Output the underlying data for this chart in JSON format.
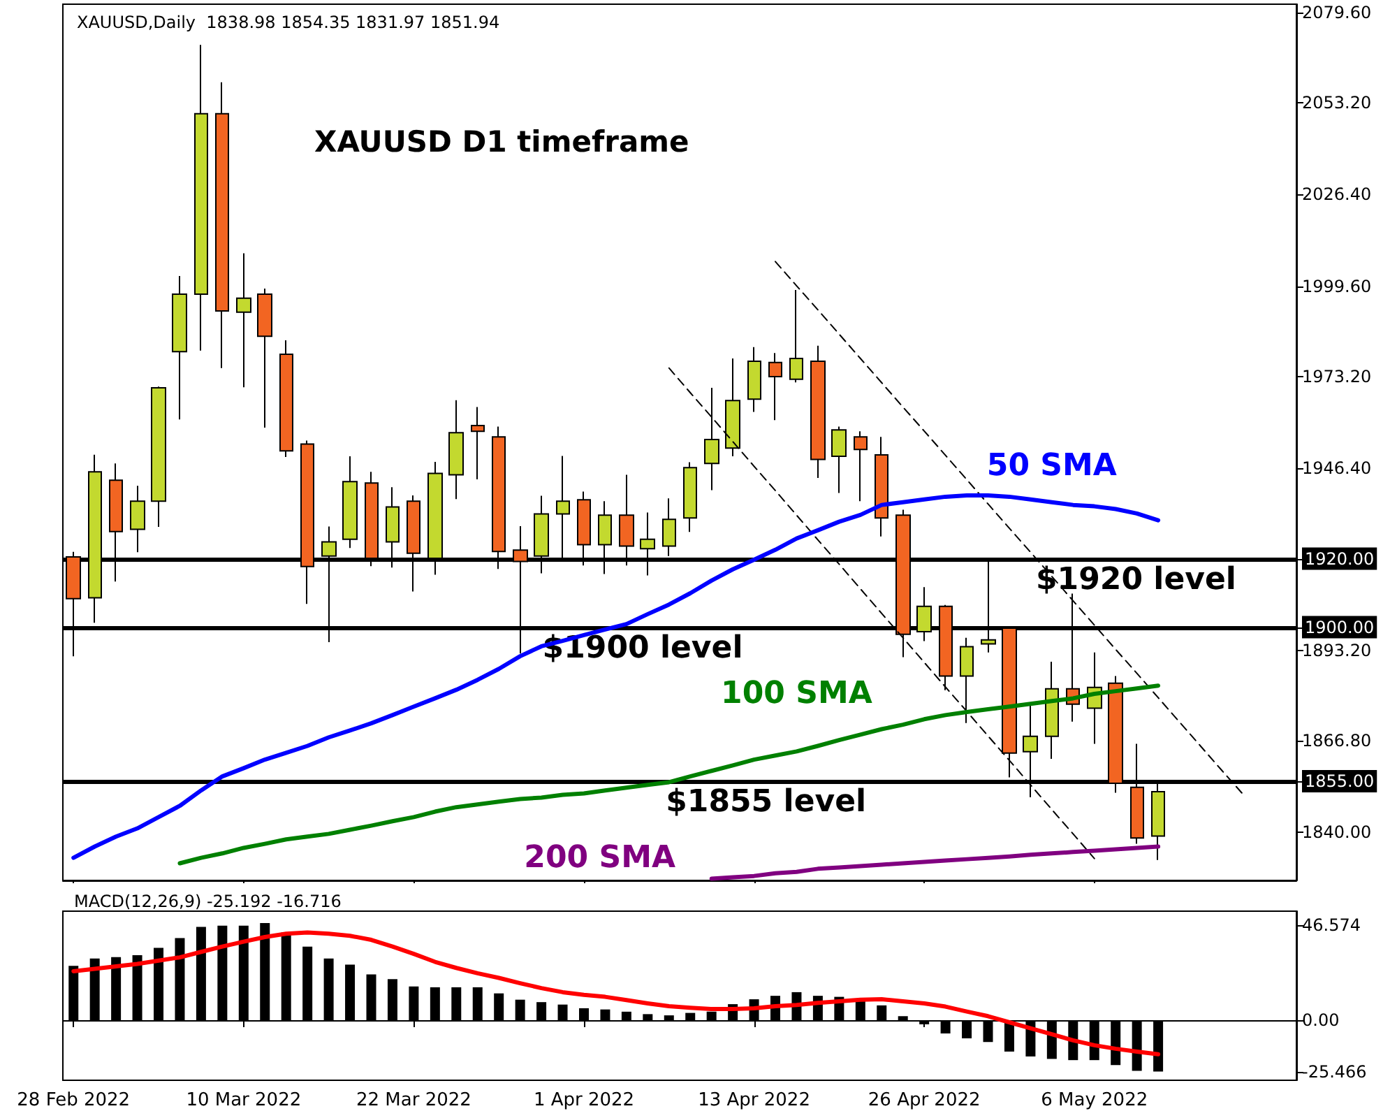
{
  "chart_data": [
    {
      "type": "candlestick",
      "title": "XAUUSD D1 timeframe",
      "annotations": [
        "XAUUSD,Daily  1838.98 1854.35 1831.97 1851.94"
      ],
      "categories": [
        "28 Feb 2022",
        null,
        null,
        null,
        null,
        null,
        null,
        null,
        "10 Mar 2022",
        null,
        null,
        null,
        null,
        null,
        null,
        null,
        "22 Mar 2022",
        null,
        null,
        null,
        null,
        null,
        null,
        null,
        "1 Apr 2022",
        null,
        null,
        null,
        null,
        null,
        null,
        null,
        "13 Apr 2022",
        null,
        null,
        null,
        null,
        null,
        null,
        null,
        "26 Apr 2022",
        null,
        null,
        null,
        null,
        null,
        null,
        null,
        "6 May 2022",
        null,
        null,
        null,
        null,
        null,
        null,
        null,
        null,
        null
      ],
      "ohlc": [
        [
          1920.5,
          1922.0,
          1891.5,
          1908.3
        ],
        [
          1908.6,
          1950.4,
          1901.3,
          1945.4
        ],
        [
          1942.9,
          1947.8,
          1913.3,
          1927.9
        ],
        [
          1928.6,
          1941.3,
          1921.9,
          1936.8
        ],
        [
          1936.8,
          1970.3,
          1929.3,
          1969.9
        ],
        [
          1980.5,
          2002.6,
          1960.7,
          1997.3
        ],
        [
          1997.3,
          2070.1,
          1980.8,
          2050.0
        ],
        [
          2050.0,
          2059.2,
          1975.7,
          1992.4
        ],
        [
          1992.0,
          2009.2,
          1970.1,
          1996.1
        ],
        [
          1997.3,
          1998.9,
          1958.3,
          1985.0
        ],
        [
          1979.7,
          1983.8,
          1949.7,
          1951.5
        ],
        [
          1953.5,
          1954.5,
          1906.8,
          1917.7
        ],
        [
          1920.8,
          1929.4,
          1895.6,
          1924.9
        ],
        [
          1925.7,
          1949.9,
          1923.1,
          1942.5
        ],
        [
          1942.1,
          1945.4,
          1917.8,
          1920.1
        ],
        [
          1924.9,
          1940.9,
          1917.4,
          1935.1
        ],
        [
          1936.8,
          1938.5,
          1910.4,
          1921.6
        ],
        [
          1920.1,
          1948.3,
          1915.3,
          1944.9
        ],
        [
          1944.5,
          1966.3,
          1937.4,
          1956.8
        ],
        [
          1958.9,
          1964.3,
          1943.2,
          1957.2
        ],
        [
          1955.6,
          1958.6,
          1917.0,
          1922.1
        ],
        [
          1922.5,
          1929.5,
          1892.3,
          1919.2
        ],
        [
          1920.8,
          1938.4,
          1915.7,
          1933.1
        ],
        [
          1933.1,
          1950.0,
          1919.2,
          1936.8
        ],
        [
          1937.2,
          1939.6,
          1918.0,
          1924.1
        ],
        [
          1924.1,
          1936.8,
          1915.5,
          1932.7
        ],
        [
          1932.7,
          1944.5,
          1918.0,
          1923.7
        ],
        [
          1922.9,
          1933.5,
          1915.1,
          1925.7
        ],
        [
          1923.7,
          1937.6,
          1920.8,
          1931.5
        ],
        [
          1931.9,
          1948.2,
          1927.8,
          1946.6
        ],
        [
          1947.8,
          1969.9,
          1940.0,
          1954.8
        ],
        [
          1952.3,
          1978.5,
          1949.9,
          1966.2
        ],
        [
          1966.6,
          1981.8,
          1962.9,
          1977.7
        ],
        [
          1977.3,
          1980.1,
          1960.5,
          1973.2
        ],
        [
          1972.4,
          1998.5,
          1971.5,
          1978.5
        ],
        [
          1977.7,
          1982.2,
          1943.6,
          1949.0
        ],
        [
          1949.9,
          1958.6,
          1939.2,
          1957.6
        ],
        [
          1955.6,
          1957.2,
          1936.8,
          1951.9
        ],
        [
          1950.3,
          1955.6,
          1926.5,
          1931.9
        ],
        [
          1932.7,
          1934.3,
          1891.2,
          1897.9
        ],
        [
          1898.7,
          1911.7,
          1895.9,
          1906.1
        ],
        [
          1906.1,
          1906.5,
          1881.6,
          1885.7
        ],
        [
          1885.7,
          1896.9,
          1872.0,
          1894.3
        ],
        [
          1895.1,
          1919.2,
          1892.6,
          1896.3
        ],
        [
          1899.7,
          1900.1,
          1856.1,
          1863.2
        ],
        [
          1863.6,
          1877.5,
          1850.3,
          1868.1
        ],
        [
          1868.1,
          1889.9,
          1861.5,
          1882.0
        ],
        [
          1882.0,
          1909.8,
          1872.4,
          1877.5
        ],
        [
          1876.3,
          1892.6,
          1865.9,
          1882.4
        ],
        [
          1883.6,
          1885.7,
          1851.6,
          1854.4
        ],
        [
          1853.2,
          1865.9,
          1836.7,
          1838.4
        ],
        [
          1838.98,
          1854.35,
          1831.97,
          1851.94
        ],
        null,
        null,
        null,
        null,
        null,
        null
      ],
      "colors": [
        "#f26522",
        "#c3d92f",
        "#f26522",
        "#c3d92f",
        "#c3d92f",
        "#c3d92f",
        "#c3d92f",
        "#f26522",
        "#c3d92f",
        "#f26522",
        "#f26522",
        "#f26522",
        "#c3d92f",
        "#c3d92f",
        "#f26522",
        "#c3d92f",
        "#f26522",
        "#c3d92f",
        "#c3d92f",
        "#f26522",
        "#f26522",
        "#f26522",
        "#c3d92f",
        "#c3d92f",
        "#f26522",
        "#c3d92f",
        "#f26522",
        "#c3d92f",
        "#c3d92f",
        "#c3d92f",
        "#c3d92f",
        "#c3d92f",
        "#c3d92f",
        "#f26522",
        "#c3d92f",
        "#f26522",
        "#c3d92f",
        "#f26522",
        "#f26522",
        "#f26522",
        "#c3d92f",
        "#f26522",
        "#c3d92f",
        "#c3d92f",
        "#f26522",
        "#c3d92f",
        "#c3d92f",
        "#f26522",
        "#c3d92f",
        "#f26522",
        "#f26522",
        "#c3d92f",
        null,
        null,
        null,
        null,
        null,
        null
      ],
      "series": [
        {
          "name": "50 SMA",
          "type": "line",
          "color": "#0000ff",
          "values": [
            1832.6,
            1835.9,
            1838.8,
            1841.2,
            1844.5,
            1847.8,
            1852.3,
            1856.4,
            1858.8,
            1861.3,
            1863.3,
            1865.3,
            1867.8,
            1869.8,
            1871.9,
            1874.3,
            1876.8,
            1879.2,
            1881.7,
            1884.6,
            1887.8,
            1891.5,
            1894.4,
            1896.0,
            1897.7,
            1899.3,
            1900.9,
            1903.8,
            1906.6,
            1909.9,
            1913.6,
            1916.9,
            1919.7,
            1922.6,
            1925.9,
            1928.3,
            1930.8,
            1932.8,
            1935.7,
            1936.5,
            1937.3,
            1938.1,
            1938.5,
            1938.5,
            1938.1,
            1937.3,
            1936.5,
            1935.7,
            1935.3,
            1934.5,
            1933.2,
            1931.2,
            null,
            null,
            null,
            null,
            null,
            null
          ]
        },
        {
          "name": "100 SMA",
          "type": "line",
          "color": "#008000",
          "values": [
            null,
            null,
            null,
            null,
            null,
            1831.0,
            1832.6,
            1833.9,
            1835.5,
            1836.7,
            1838.0,
            1838.8,
            1839.6,
            1840.8,
            1842.0,
            1843.3,
            1844.5,
            1846.1,
            1847.4,
            1848.2,
            1849.0,
            1849.8,
            1850.2,
            1851.0,
            1851.4,
            1852.3,
            1853.1,
            1853.9,
            1854.7,
            1856.4,
            1858.0,
            1859.6,
            1861.3,
            1862.5,
            1863.7,
            1865.3,
            1867.0,
            1868.6,
            1870.2,
            1871.5,
            1873.1,
            1874.3,
            1875.2,
            1876.0,
            1876.8,
            1877.6,
            1878.4,
            1879.2,
            1880.5,
            1881.3,
            1882.1,
            1882.9,
            null,
            null,
            null,
            null,
            null,
            null
          ]
        },
        {
          "name": "200 SMA",
          "type": "line",
          "color": "#800080",
          "values": [
            null,
            null,
            null,
            null,
            null,
            null,
            null,
            null,
            null,
            null,
            null,
            null,
            null,
            null,
            null,
            null,
            null,
            null,
            null,
            null,
            null,
            null,
            null,
            null,
            null,
            null,
            null,
            null,
            null,
            null,
            1826.5,
            1826.9,
            1827.3,
            1828.1,
            1828.5,
            1829.4,
            1829.8,
            1830.2,
            1830.6,
            1831.0,
            1831.4,
            1831.8,
            1832.2,
            1832.6,
            1833.0,
            1833.5,
            1833.9,
            1834.3,
            1834.7,
            1835.1,
            1835.5,
            1835.9,
            null,
            null,
            null,
            null,
            null,
            null
          ]
        },
        {
          "type": "line",
          "color": "#000000",
          "line_style": "dashed",
          "values": [
            null,
            null,
            null,
            null,
            null,
            null,
            null,
            null,
            null,
            null,
            null,
            null,
            null,
            null,
            null,
            null,
            null,
            null,
            null,
            null,
            null,
            null,
            null,
            null,
            null,
            null,
            null,
            null,
            null,
            null,
            null,
            null,
            null,
            2006.8,
            1999.7,
            1992.7,
            1985.6,
            1978.5,
            1971.4,
            1964.3,
            1957.3,
            1950.2,
            1943.1,
            1936.0,
            1928.9,
            1921.9,
            1914.8,
            1907.7,
            1900.6,
            1893.5,
            1886.5,
            1879.4,
            1872.3,
            1865.2,
            1858.1,
            1851.1,
            null,
            null
          ]
        },
        {
          "type": "line",
          "color": "#000000",
          "line_style": "dashed",
          "values": [
            null,
            null,
            null,
            null,
            null,
            null,
            null,
            null,
            null,
            null,
            null,
            null,
            null,
            null,
            null,
            null,
            null,
            null,
            null,
            null,
            null,
            null,
            null,
            null,
            null,
            null,
            null,
            null,
            1975.7,
            1968.5,
            1961.4,
            1954.2,
            1947.0,
            1939.9,
            1932.7,
            1925.5,
            1918.4,
            1911.2,
            1904.0,
            1896.9,
            1889.7,
            1882.5,
            1875.4,
            1868.2,
            1861.1,
            1853.9,
            1846.7,
            1839.6,
            1832.4,
            null,
            null,
            null,
            null,
            null,
            null,
            null,
            null,
            null
          ]
        }
      ],
      "ref_lines": [
        {
          "axis": "y",
          "value": 1920,
          "label": "$1920 level",
          "color": "#000000"
        },
        {
          "axis": "y",
          "value": 1900,
          "label": "$1900 level",
          "color": "#000000"
        },
        {
          "axis": "y",
          "value": 1855,
          "label": "$1855 level",
          "color": "#000000"
        }
      ],
      "ylim": [
        1826,
        2082
      ],
      "yticks": [
        {
          "value": 2079.6,
          "label": "2079.60"
        },
        {
          "value": 2053.2,
          "label": "2053.20"
        },
        {
          "value": 2026.4,
          "label": "2026.40"
        },
        {
          "value": 1999.6,
          "label": "1999.60"
        },
        {
          "value": 1973.2,
          "label": "1973.20"
        },
        {
          "value": 1946.4,
          "label": "1946.40"
        },
        {
          "value": 1920,
          "label": "1920.00"
        },
        {
          "value": 1900,
          "label": "1900.00"
        },
        {
          "value": 1893.2,
          "label": "1893.20"
        },
        {
          "value": 1866.8,
          "label": "1866.80"
        },
        {
          "value": 1855,
          "label": "1855.00"
        },
        {
          "value": 1840,
          "label": "1840.00"
        }
      ],
      "tick_labels": "y",
      "marker": "none",
      "line_style": "solid"
    },
    {
      "type": "bar",
      "title": "MACD(12,26,9) -25.192 -16.716",
      "series": [
        {
          "type": "bar",
          "color": "#000000",
          "values": [
            26.7,
            30.3,
            31.0,
            32.0,
            35.6,
            40.4,
            45.9,
            46.5,
            46.5,
            47.8,
            43.1,
            36.2,
            30.3,
            27.3,
            22.5,
            20.2,
            16.6,
            16.2,
            16.2,
            16.2,
            13.2,
            10.1,
            8.9,
            7.7,
            5.9,
            5.3,
            4.2,
            3.0,
            2.4,
            3.6,
            4.2,
            7.9,
            10.3,
            12.0,
            13.8,
            12.0,
            11.5,
            9.7,
            7.3,
            2.0,
            -2.0,
            -6.5,
            -8.9,
            -10.7,
            -15.4,
            -17.8,
            -19.0,
            -19.6,
            -19.6,
            -22.0,
            -24.9,
            -25.192,
            null,
            null,
            null,
            null,
            null,
            null
          ]
        },
        {
          "type": "line",
          "color": "#ff0000",
          "values": [
            24.1,
            25.3,
            26.5,
            27.7,
            29.3,
            30.9,
            33.6,
            36.2,
            38.6,
            40.9,
            42.5,
            43.1,
            42.5,
            41.5,
            39.5,
            36.2,
            32.6,
            28.7,
            25.7,
            23.1,
            20.8,
            18.2,
            15.8,
            13.8,
            12.5,
            11.5,
            9.9,
            8.3,
            6.9,
            6.1,
            5.5,
            5.5,
            5.9,
            6.9,
            7.5,
            8.5,
            9.3,
            10.1,
            10.3,
            9.3,
            8.3,
            6.7,
            4.3,
            2.0,
            -1.0,
            -4.0,
            -6.9,
            -9.9,
            -12.3,
            -14.0,
            -15.4,
            -16.716,
            null,
            null,
            null,
            null,
            null,
            null
          ]
        }
      ],
      "ylim": [
        -29.5,
        53.6
      ],
      "yticks": [
        46.574,
        {
          "value": 0,
          "label": "0.00"
        },
        -25.466
      ],
      "marker": "none",
      "line_style": "solid"
    }
  ]
}
